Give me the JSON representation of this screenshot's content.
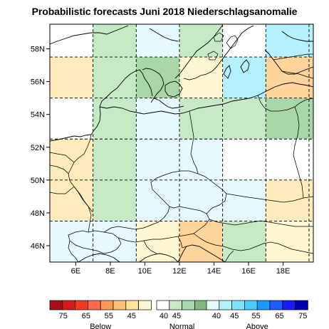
{
  "title": "Probabilistic forecasts Juni 2018 Niederschlagsanomalie",
  "map": {
    "lon_range": [
      4.5,
      19.75
    ],
    "lat_range": [
      45.0,
      59.5
    ],
    "grid_step": 2.5,
    "lon_ticks": [
      {
        "value": 6,
        "label": "6E"
      },
      {
        "value": 8,
        "label": "8E"
      },
      {
        "value": 10,
        "label": "10E"
      },
      {
        "value": 12,
        "label": "12E"
      },
      {
        "value": 14,
        "label": "14E"
      },
      {
        "value": 16,
        "label": "16E"
      },
      {
        "value": 18,
        "label": "18E"
      }
    ],
    "lat_ticks": [
      {
        "value": 46,
        "label": "46N"
      },
      {
        "value": 48,
        "label": "48N"
      },
      {
        "value": 50,
        "label": "50N"
      },
      {
        "value": 52,
        "label": "52N"
      },
      {
        "value": 54,
        "label": "54N"
      },
      {
        "value": 56,
        "label": "56N"
      },
      {
        "value": 58,
        "label": "58N"
      }
    ],
    "cells": [
      {
        "lon": 4.5,
        "lat": 45.0,
        "lon2": 7.0,
        "lat2": 47.5,
        "color": "#e6faff"
      },
      {
        "lon": 7.0,
        "lat": 45.0,
        "lon2": 9.5,
        "lat2": 47.5,
        "color": "#e6faff"
      },
      {
        "lon": 9.5,
        "lat": 45.0,
        "lon2": 12.0,
        "lat2": 47.5,
        "color": "#fff7d2"
      },
      {
        "lon": 12.0,
        "lat": 45.0,
        "lon2": 14.5,
        "lat2": 47.5,
        "color": "#ffd49a"
      },
      {
        "lon": 14.5,
        "lat": 45.0,
        "lon2": 17.0,
        "lat2": 47.5,
        "color": "#c6e9c6"
      },
      {
        "lon": 17.0,
        "lat": 45.0,
        "lon2": 19.75,
        "lat2": 47.5,
        "color": "#fff7d2"
      },
      {
        "lon": 4.5,
        "lat": 47.5,
        "lon2": 7.0,
        "lat2": 50.0,
        "color": "#ffebbb"
      },
      {
        "lon": 7.0,
        "lat": 47.5,
        "lon2": 9.5,
        "lat2": 50.0,
        "color": "#c6e9c6"
      },
      {
        "lon": 9.5,
        "lat": 47.5,
        "lon2": 12.0,
        "lat2": 50.0,
        "color": "#e6faff"
      },
      {
        "lon": 12.0,
        "lat": 47.5,
        "lon2": 14.5,
        "lat2": 50.0,
        "color": "#e6faff"
      },
      {
        "lon": 14.5,
        "lat": 47.5,
        "lon2": 17.0,
        "lat2": 50.0,
        "color": "#e6faff"
      },
      {
        "lon": 17.0,
        "lat": 47.5,
        "lon2": 19.75,
        "lat2": 50.0,
        "color": "#ffebbb"
      },
      {
        "lon": 4.5,
        "lat": 50.0,
        "lon2": 7.0,
        "lat2": 52.5,
        "color": "#ffebbb"
      },
      {
        "lon": 7.0,
        "lat": 50.0,
        "lon2": 9.5,
        "lat2": 52.5,
        "color": "#c6e9c6"
      },
      {
        "lon": 9.5,
        "lat": 50.0,
        "lon2": 12.0,
        "lat2": 52.5,
        "color": "#e6faff"
      },
      {
        "lon": 12.0,
        "lat": 50.0,
        "lon2": 14.5,
        "lat2": 52.5,
        "color": "#e6faff"
      },
      {
        "lon": 14.5,
        "lat": 50.0,
        "lon2": 17.0,
        "lat2": 52.5,
        "color": "#ffffff"
      },
      {
        "lon": 17.0,
        "lat": 50.0,
        "lon2": 19.75,
        "lat2": 52.5,
        "color": "#ffffff"
      },
      {
        "lon": 4.5,
        "lat": 52.5,
        "lon2": 7.0,
        "lat2": 55.0,
        "color": "#ffffff"
      },
      {
        "lon": 7.0,
        "lat": 52.5,
        "lon2": 9.5,
        "lat2": 55.0,
        "color": "#c6e9c6"
      },
      {
        "lon": 9.5,
        "lat": 52.5,
        "lon2": 12.0,
        "lat2": 55.0,
        "color": "#e6faff"
      },
      {
        "lon": 12.0,
        "lat": 52.5,
        "lon2": 14.5,
        "lat2": 55.0,
        "color": "#c6e9c6"
      },
      {
        "lon": 14.5,
        "lat": 52.5,
        "lon2": 17.0,
        "lat2": 55.0,
        "color": "#c6e9c6"
      },
      {
        "lon": 17.0,
        "lat": 52.5,
        "lon2": 19.75,
        "lat2": 55.0,
        "color": "#a9d6a9"
      },
      {
        "lon": 4.5,
        "lat": 55.0,
        "lon2": 7.0,
        "lat2": 57.5,
        "color": "#ffebbb"
      },
      {
        "lon": 7.0,
        "lat": 55.0,
        "lon2": 9.5,
        "lat2": 57.5,
        "color": "#c6e9c6"
      },
      {
        "lon": 9.5,
        "lat": 55.0,
        "lon2": 12.0,
        "lat2": 57.5,
        "color": "#a9d6a9"
      },
      {
        "lon": 12.0,
        "lat": 55.0,
        "lon2": 14.5,
        "lat2": 57.5,
        "color": "#fff7d2"
      },
      {
        "lon": 14.5,
        "lat": 55.0,
        "lon2": 17.0,
        "lat2": 57.5,
        "color": "#b5f0ff"
      },
      {
        "lon": 17.0,
        "lat": 55.0,
        "lon2": 19.75,
        "lat2": 57.5,
        "color": "#ffd49a"
      },
      {
        "lon": 4.5,
        "lat": 57.5,
        "lon2": 7.0,
        "lat2": 59.5,
        "color": "#ffffff"
      },
      {
        "lon": 7.0,
        "lat": 57.5,
        "lon2": 9.5,
        "lat2": 59.5,
        "color": "#c6e9c6"
      },
      {
        "lon": 9.5,
        "lat": 57.5,
        "lon2": 12.0,
        "lat2": 59.5,
        "color": "#e6faff"
      },
      {
        "lon": 12.0,
        "lat": 57.5,
        "lon2": 14.5,
        "lat2": 59.5,
        "color": "#c6e9c6"
      },
      {
        "lon": 14.5,
        "lat": 57.5,
        "lon2": 17.0,
        "lat2": 59.5,
        "color": "#ffffff"
      },
      {
        "lon": 17.0,
        "lat": 57.5,
        "lon2": 19.75,
        "lat2": 59.5,
        "color": "#b5f0ff"
      }
    ]
  },
  "legend": {
    "groups": [
      {
        "title": "Below",
        "colors": [
          "#a50f15",
          "#d7191c",
          "#f03b20",
          "#fd6a4e",
          "#fd9a5a",
          "#fec07a",
          "#fee29a",
          "#fff7d2"
        ],
        "labels": [
          "75",
          "65",
          "55",
          "45"
        ]
      },
      {
        "title": "Normal",
        "colors": [
          "#ffffff",
          "#c6e9c6",
          "#a9d6a9",
          "#7fb77f"
        ],
        "labels": [
          "40",
          "45"
        ]
      },
      {
        "title": "Above",
        "colors": [
          "#e6faff",
          "#b5f0ff",
          "#7fe3ff",
          "#4cc9ff",
          "#1e96ff",
          "#1e5cff",
          "#1a1aff",
          "#0000b4"
        ],
        "labels": [
          "40",
          "45",
          "55",
          "65",
          "75"
        ]
      }
    ]
  }
}
